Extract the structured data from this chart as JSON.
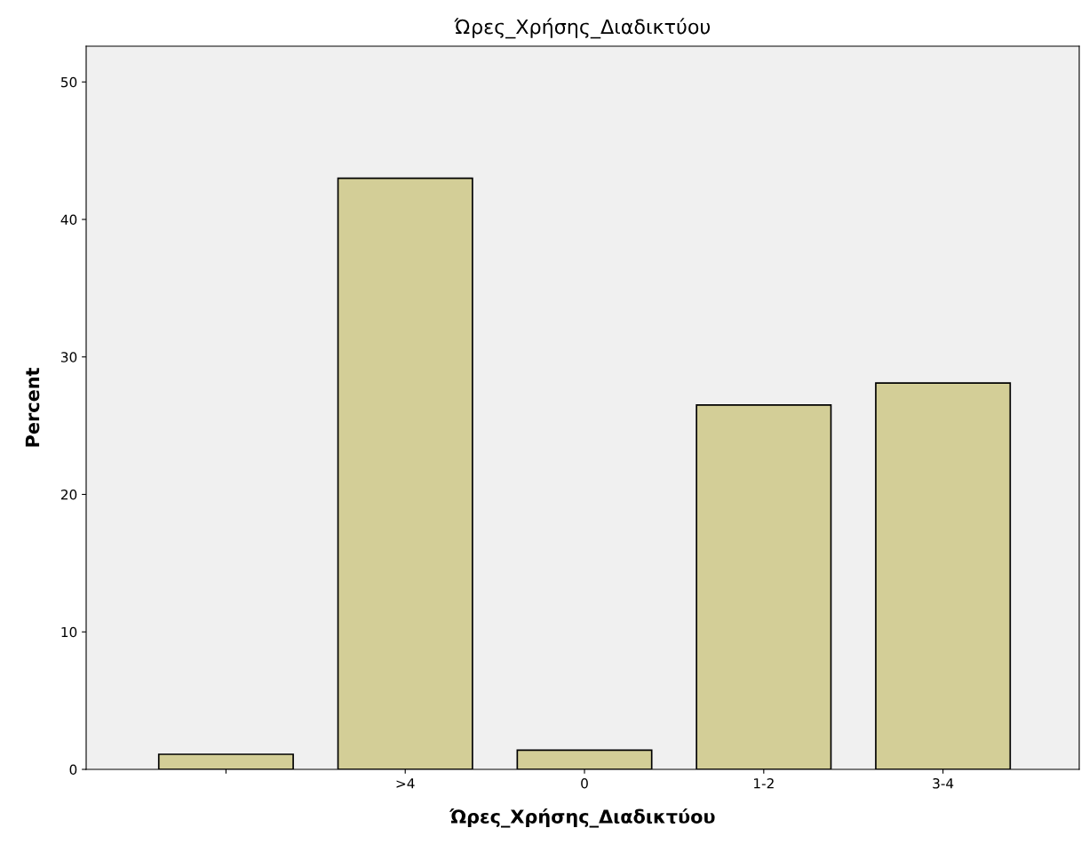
{
  "chart_data": {
    "type": "bar",
    "title": "Ώρες_Χρήσης_Διαδικτύου",
    "xlabel": "Ώρες_Χρήσης_Διαδικτύου",
    "ylabel": "Percent",
    "categories": [
      null,
      ">4",
      "0",
      "1-2",
      "3-4"
    ],
    "values": [
      1.1,
      43.0,
      1.4,
      26.5,
      28.1
    ],
    "color": "#d3ce97",
    "ylim": [
      0,
      52.6
    ],
    "yticks": [
      0,
      10,
      20,
      30,
      40,
      50
    ],
    "grid": false
  }
}
